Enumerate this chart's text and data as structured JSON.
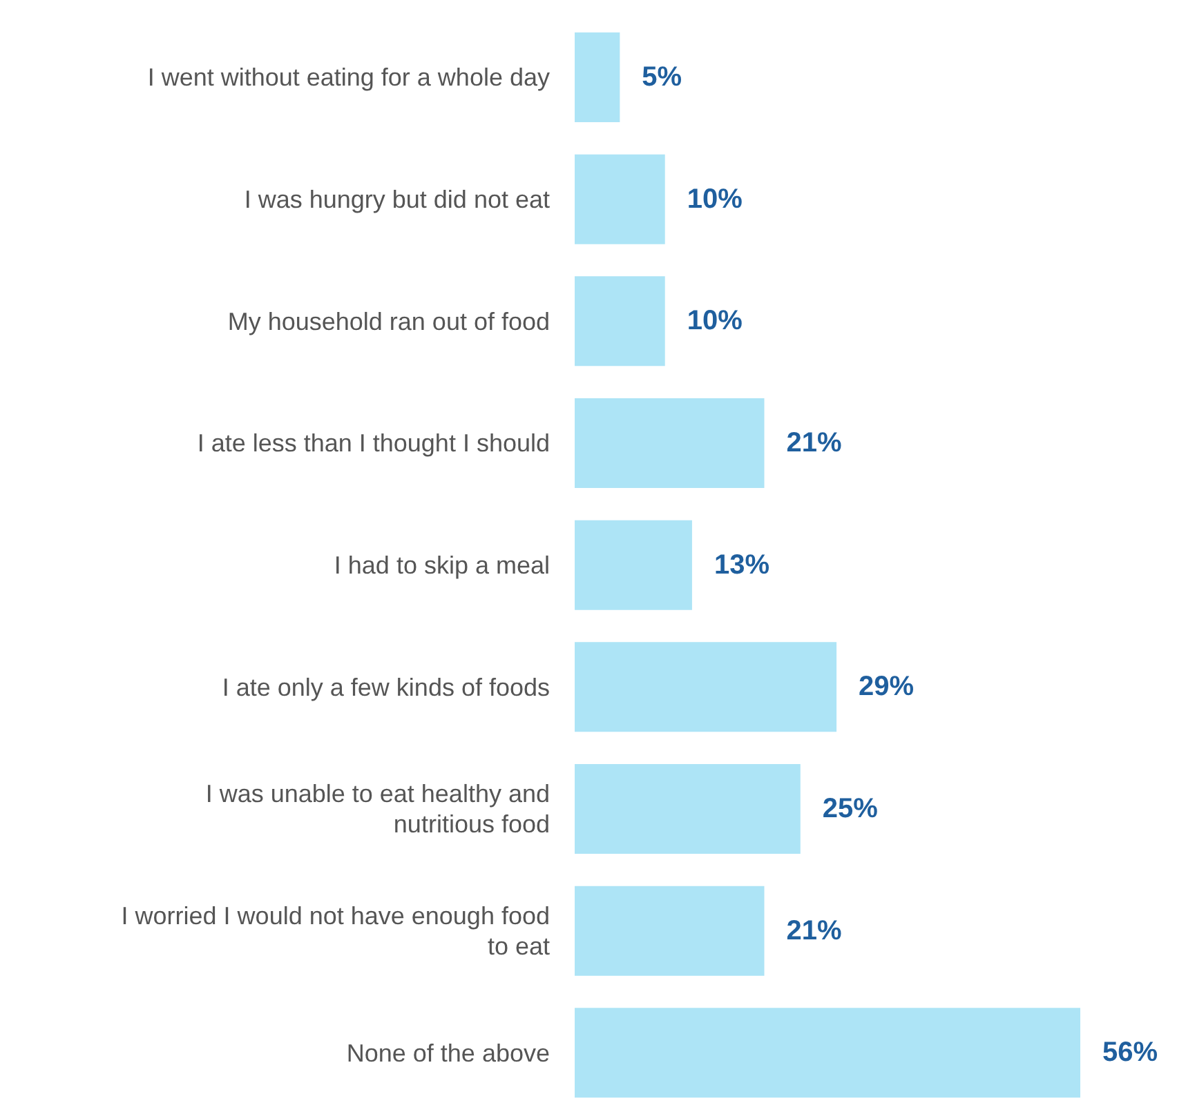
{
  "chart_data": {
    "type": "bar",
    "orientation": "horizontal",
    "categories": [
      "I went without eating for a whole day",
      "I was hungry but did not eat",
      "My household ran out of food",
      "I ate less than I thought I should",
      "I had to skip a meal",
      "I ate only a few kinds of foods",
      "I was unable to eat healthy and nutritious food",
      "I worried I would not have enough food to eat",
      "None of the above"
    ],
    "values": [
      5,
      10,
      10,
      21,
      13,
      29,
      25,
      21,
      56
    ],
    "value_labels": [
      "5%",
      "10%",
      "10%",
      "21%",
      "13%",
      "29%",
      "25%",
      "21%",
      "56%"
    ],
    "color": "#ade4f6"
  }
}
